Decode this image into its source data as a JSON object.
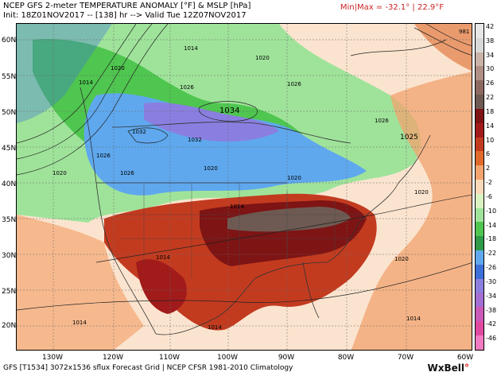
{
  "header": {
    "title": "NCEP GFS 2-meter TEMPERATURE ANOMALY [°F] & MSLP [hPa]",
    "init_line": "Init: 18Z01NOV2017 -- [138] hr --> Valid Tue 12Z07NOV2017",
    "minmax": "Min|Max = -32.1° | 22.9°F"
  },
  "map": {
    "lat_labels": [
      "60N",
      "55N",
      "50N",
      "45N",
      "40N",
      "35N",
      "30N",
      "25N",
      "20N"
    ],
    "lon_labels": [
      "130W",
      "120W",
      "110W",
      "100W",
      "90W",
      "80W",
      "70W",
      "60W"
    ],
    "pressure_labels": [
      "1014",
      "1020",
      "1014",
      "1026",
      "1020",
      "1026",
      "1034",
      "1032",
      "1032",
      "1026",
      "1026",
      "1025",
      "1020",
      "1020",
      "1026",
      "1014",
      "1020",
      "1020",
      "1014",
      "1014",
      "1014",
      "1020",
      "1014",
      "981"
    ],
    "colors": {
      "cold_purple": "#8a7fe0",
      "cold_blue": "#5fa8ee",
      "cool_green": "#4fc64f",
      "warm_orange": "#f2a36e",
      "hot_red": "#b3361f",
      "hot_gray": "#6e5a52"
    }
  },
  "colorbar": {
    "labels": [
      "42",
      "38",
      "34",
      "30",
      "26",
      "22",
      "18",
      "14",
      "10",
      "6",
      "2",
      "-2",
      "-6",
      "-10",
      "-14",
      "-18",
      "-22",
      "-26",
      "-30",
      "-34",
      "-38",
      "-42",
      "-46"
    ],
    "ticks": [
      "42",
      "38",
      "34",
      "30",
      "26",
      "22",
      "18",
      "14",
      "10",
      "6",
      "2",
      "-2",
      "-6",
      "-10",
      "-14",
      "-18",
      "-22",
      "-26",
      "-30",
      "-34",
      "-38",
      "-42",
      "-46"
    ],
    "colors": [
      "#e7e7e7",
      "#d8d8d8",
      "#c9b2a8",
      "#b08f84",
      "#8d6a5f",
      "#6e5a52",
      "#7e1414",
      "#a11b1b",
      "#c33b1f",
      "#e06a2c",
      "#f2a36e",
      "#fbd9b8",
      "#d9f2c2",
      "#9fe39a",
      "#4fc64f",
      "#2f9a49",
      "#5fa8ee",
      "#3d6fd9",
      "#8a7fe0",
      "#a36fd2",
      "#c95ab8",
      "#e04aa0",
      "#f07bc0"
    ]
  },
  "footer": {
    "credit": "GFS [T1534] 3072x1536 sflux Forecast Grid | NCEP CFSR 1981-2010 Climatology",
    "brand": "WxBell"
  }
}
